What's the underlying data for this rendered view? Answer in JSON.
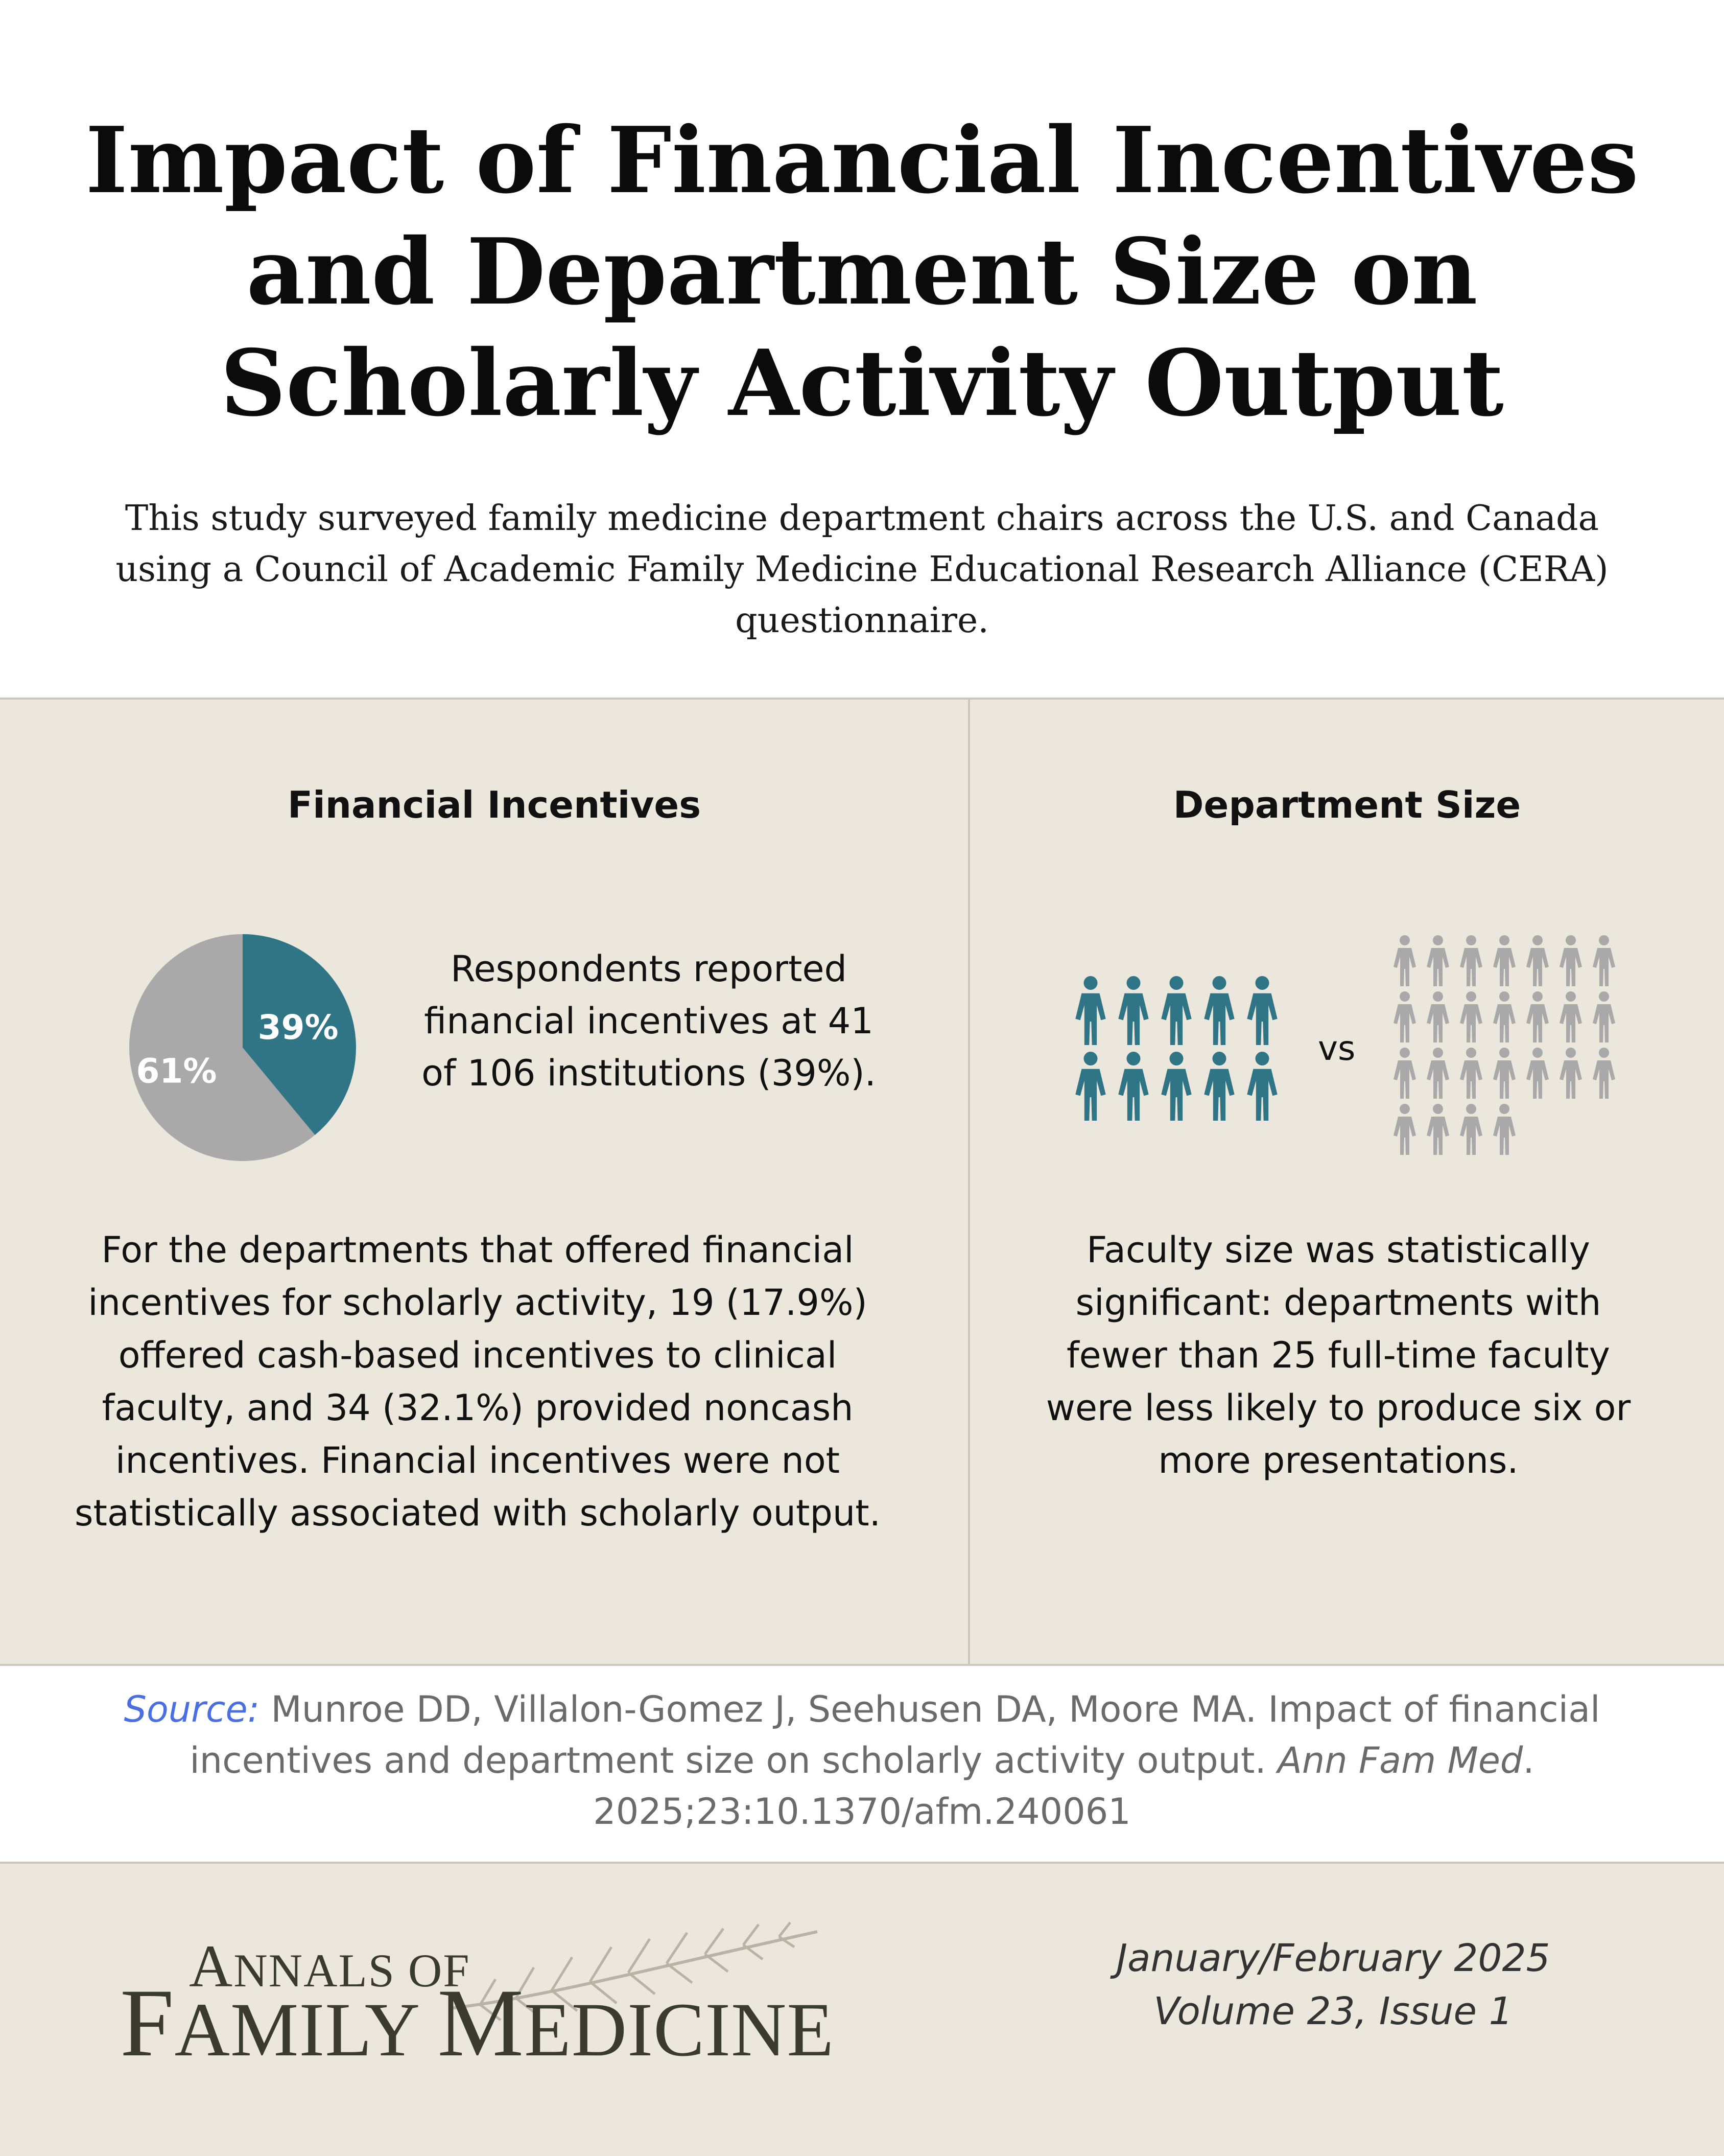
{
  "header": {
    "title_lines": [
      "Impact of Financial Incentives",
      "and Department Size on",
      "Scholarly Activity Output"
    ],
    "intro": "This study surveyed family medicine department chairs across the U.S. and Canada using a Council of Academic Family Medicine Educational Research Alliance (CERA) questionnaire."
  },
  "financial": {
    "title": "Financial Incentives",
    "pie_text": "Respondents reported financial incentives at 41 of 106 institutions (39%).",
    "paragraph": "For the departments that offered financial incentives for scholarly activity, 19 (17.9%) offered cash-based incentives to clinical faculty, and 34 (32.1%) provided noncash incentives. Financial incentives were not statistically associated with scholarly output."
  },
  "chart_data": {
    "type": "pie",
    "title": "",
    "slices": [
      {
        "label": "39%",
        "value": 39,
        "color": "#2f7585"
      },
      {
        "label": "61%",
        "value": 61,
        "color": "#a9a9a9"
      }
    ]
  },
  "department": {
    "title": "Department Size",
    "vs_label": "vs",
    "small_group": {
      "count": 10,
      "color": "#2f7585"
    },
    "large_group": {
      "count": 25,
      "color": "#a9a9a9"
    },
    "paragraph": "Faculty size was statistically significant: departments with fewer than 25 full-time faculty were less likely to produce six or more presentations."
  },
  "source": {
    "label": "Source",
    "colon": ":",
    "text_before": " Munroe DD, Villalon-Gomez J, Seehusen DA, Moore MA. Impact of financial incentives and department size on scholarly activity output. ",
    "journal": "Ann Fam Med",
    "text_after": ". 2025;23:10.1370/afm.240061"
  },
  "footer": {
    "logo_annals_first": "A",
    "logo_annals_rest": "NNALS OF",
    "logo_family_first": "F",
    "logo_family_rest": "AMILY ",
    "logo_medicine_first": "M",
    "logo_medicine_rest": "EDICINE",
    "issue_date": "January/February 2025",
    "issue_volume": "Volume 23, Issue 1"
  }
}
